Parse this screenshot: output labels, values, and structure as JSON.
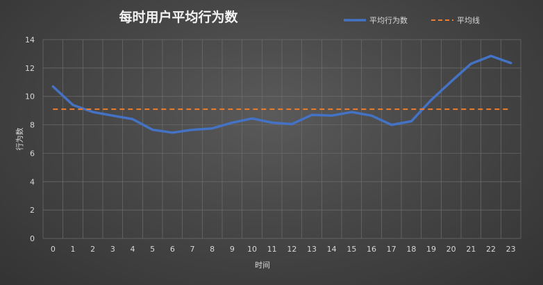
{
  "chart_data": {
    "type": "line",
    "title": "每时用户平均行为数",
    "xlabel": "时间",
    "ylabel": "行为数",
    "categories": [
      "0",
      "1",
      "2",
      "3",
      "4",
      "5",
      "6",
      "7",
      "8",
      "9",
      "10",
      "11",
      "12",
      "13",
      "14",
      "15",
      "16",
      "17",
      "18",
      "19",
      "20",
      "21",
      "22",
      "23"
    ],
    "ylim": [
      0,
      14
    ],
    "yticks": [
      0,
      2,
      4,
      6,
      8,
      10,
      12,
      14
    ],
    "grid": true,
    "legend_position": "top-right",
    "series": [
      {
        "name": "平均行为数",
        "style": "solid",
        "color": "#4472c4",
        "values": [
          10.7,
          9.4,
          8.9,
          8.65,
          8.4,
          7.65,
          7.45,
          7.65,
          7.75,
          8.15,
          8.45,
          8.15,
          8.05,
          8.7,
          8.65,
          8.9,
          8.65,
          8.0,
          8.25,
          9.75,
          11.05,
          12.3,
          12.85,
          12.35
        ]
      },
      {
        "name": "平均线",
        "style": "dashed",
        "color": "#ed7d31",
        "values": [
          9.1,
          9.1,
          9.1,
          9.1,
          9.1,
          9.1,
          9.1,
          9.1,
          9.1,
          9.1,
          9.1,
          9.1,
          9.1,
          9.1,
          9.1,
          9.1,
          9.1,
          9.1,
          9.1,
          9.1,
          9.1,
          9.1,
          9.1,
          9.1
        ]
      }
    ]
  }
}
